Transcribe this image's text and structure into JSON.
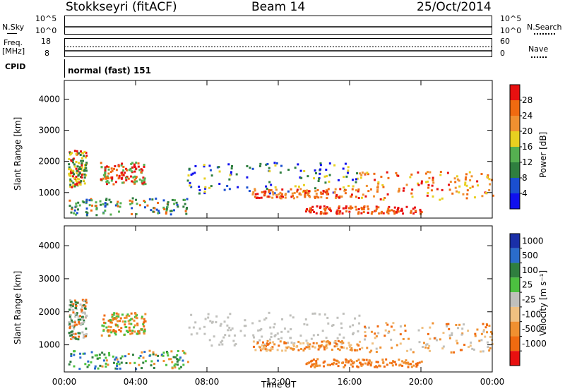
{
  "header": {
    "station": "Stokkseyri (fitACF)",
    "beam": "Beam 14",
    "date": "25/Oct/2014"
  },
  "nsky_panel": {
    "left_label": "N.Sky",
    "left_ticks": [
      "10^5",
      "10^0"
    ],
    "right_ticks": [
      "10^5",
      "10^0"
    ],
    "right_label": "N.Search"
  },
  "freq_panel": {
    "left_label_line1": "Freq.",
    "left_label_line2": "[MHz]",
    "left_ticks": [
      "18",
      "8"
    ],
    "right_ticks": [
      "60",
      "0"
    ],
    "right_label": "Nave"
  },
  "cpid": {
    "label": "CPID",
    "value": "normal (fast) 151"
  },
  "colors": {
    "power": [
      "#1010ee",
      "#1a4fd0",
      "#2f7f3f",
      "#55b050",
      "#e8d020",
      "#f09030",
      "#f06a10",
      "#e81010"
    ],
    "velocity": [
      "#1a2fa8",
      "#2a6ccc",
      "#2f7f3f",
      "#4cc040",
      "#c0c0bc",
      "#f0c080",
      "#f09030",
      "#f06a10",
      "#e81010"
    ]
  },
  "chart_data": [
    {
      "type": "heatmap",
      "title": "Power",
      "xlabel": "Time UT",
      "ylabel": "Slant Range [km]",
      "x_ticks": [
        "00:00",
        "04:00",
        "08:00",
        "12:00",
        "16:00",
        "20:00",
        "00:00"
      ],
      "xlim_hours": [
        0,
        24
      ],
      "y_ticks": [
        "1000",
        "2000",
        "3000",
        "4000"
      ],
      "ylim": [
        180,
        4600
      ],
      "colorbar": {
        "label": "Power [dB]",
        "ticks": [
          "4",
          "8",
          "12",
          "16",
          "20",
          "24",
          "28"
        ],
        "range": [
          0,
          32
        ]
      }
    },
    {
      "type": "heatmap",
      "title": "Velocity",
      "xlabel": "Time UT",
      "ylabel": "Slant Range [km]",
      "x_ticks": [
        "00:00",
        "04:00",
        "08:00",
        "12:00",
        "16:00",
        "20:00",
        "00:00"
      ],
      "xlim_hours": [
        0,
        24
      ],
      "y_ticks": [
        "1000",
        "2000",
        "3000",
        "4000"
      ],
      "ylim": [
        180,
        4600
      ],
      "colorbar": {
        "label": "Velocity [m s⁻¹]",
        "ticks": [
          "1000",
          "500",
          "100",
          "25",
          "-25",
          "-100",
          "-500",
          "-1000"
        ]
      }
    }
  ],
  "time_label": "Time UT"
}
